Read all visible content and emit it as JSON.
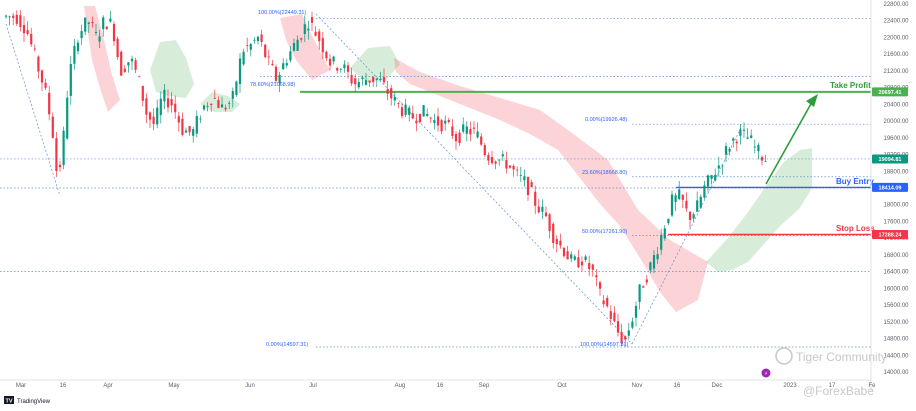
{
  "chart_data": {
    "type": "candlestick",
    "y_axis_ticks": [
      22800,
      22400,
      22000,
      21600,
      21200,
      20800,
      20400,
      20000,
      19600,
      19200,
      18800,
      18400,
      18000,
      17600,
      17200,
      16800,
      16400,
      16000,
      15600,
      15200,
      14800,
      14400,
      14000
    ],
    "ylim": [
      13850,
      22900
    ],
    "x_axis_ticks": [
      "Mar",
      "16",
      "Apr",
      "May",
      "Jun",
      "Jul",
      "Aug",
      "16",
      "Sep",
      "Oct",
      "Nov",
      "16",
      "Dec",
      "2023",
      "17",
      "Fe"
    ],
    "fib_labels": [
      {
        "text": "100.00%(22449.31)",
        "value": 22449.31
      },
      {
        "text": "78.60%(21068.98)",
        "value": 21068.98
      },
      {
        "text": "0.00%(19926.48)",
        "value": 19926.48
      },
      {
        "text": "23.60%(18668.80)",
        "value": 18668.8
      },
      {
        "text": "50.00%(17261.90)",
        "value": 17261.9
      },
      {
        "text": "0.00%(14597.31)",
        "value": 14597.31
      },
      {
        "text": "100.00%(14597.31)",
        "value": 14597.31
      }
    ],
    "levels": [
      {
        "name": "Take Profit",
        "value": 20697.41,
        "badge": "20697.41",
        "color": "#4caf50",
        "label_color": "#2e9e3a"
      },
      {
        "name": "Buy Entry",
        "value": 18414.09,
        "badge": "18414.09",
        "color": "#2962ff",
        "label_color": "#2962ff"
      },
      {
        "name": "Stop Loss",
        "value": 17288.24,
        "badge": "17288.24",
        "color": "#f23645",
        "label_color": "#f23645"
      }
    ],
    "current_price": {
      "value": 19094.81,
      "badge": "19094.81",
      "color": "#089981"
    },
    "horizontal_lines": [
      22449.31,
      21068.98,
      19926.48,
      19094.81,
      18668.8,
      18414.09,
      17261.9,
      16400.0,
      14597.31
    ],
    "colors": {
      "up": "#089981",
      "down": "#f23645",
      "cloud_bull": "#4caf50",
      "cloud_bear": "#f23645",
      "fib": "#2962ff"
    },
    "grid": false
  },
  "footer": {
    "brand": "TradingView",
    "logo": "TV"
  },
  "watermark": {
    "community": "Tiger Community",
    "handle": "@ForexBabe"
  }
}
